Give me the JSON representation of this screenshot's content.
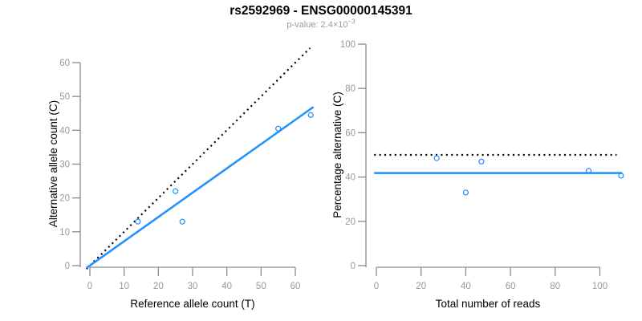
{
  "header": {
    "title": "rs2592969 - ENSG00000145391",
    "subtitle_main": "p-value: 2.4×10",
    "subtitle_exponent": "−3"
  },
  "colors": {
    "accent_blue": "#1E90FF",
    "dotted_line": "#000000",
    "axis": "#8a8a8a",
    "tick_label": "#999999",
    "axis_title": "#000000",
    "subtitle": "#9a9a9a",
    "background": "#ffffff"
  },
  "chart_data": [
    {
      "type": "scatter",
      "title": "",
      "xlabel": "Reference allele count (T)",
      "ylabel": "Alternative allele count (C)",
      "xticks": [
        0,
        10,
        20,
        30,
        40,
        50,
        60
      ],
      "yticks": [
        0,
        10,
        20,
        30,
        40,
        50,
        60
      ],
      "xlim": [
        -2.6,
        67
      ],
      "ylim": [
        -2.6,
        67
      ],
      "grid": false,
      "marker": {
        "shape": "open-circle",
        "color": "#1E90FF"
      },
      "points": [
        [
          14,
          13
        ],
        [
          25,
          22
        ],
        [
          27,
          13
        ],
        [
          55,
          40.5
        ],
        [
          64.5,
          44.5
        ]
      ],
      "lines": [
        {
          "name": "identity-line",
          "style": "dotted",
          "color": "#000000",
          "x0": -1,
          "y0": -1,
          "x1": 64.3,
          "y1": 64.3
        },
        {
          "name": "fit-line",
          "style": "solid",
          "color": "#1E90FF",
          "x0": -1,
          "y0": -0.7,
          "x1": 65.3,
          "y1": 46.9
        }
      ]
    },
    {
      "type": "scatter",
      "title": "",
      "xlabel": "Total number of reads",
      "ylabel": "Percentage alternative (C)",
      "xticks": [
        0,
        20,
        40,
        60,
        80,
        100
      ],
      "yticks": [
        0,
        20,
        40,
        60,
        80,
        100
      ],
      "xlim": [
        -4.4,
        114
      ],
      "ylim": [
        -4,
        104
      ],
      "grid": false,
      "marker": {
        "shape": "open-circle",
        "color": "#1E90FF"
      },
      "points": [
        [
          27,
          48.5
        ],
        [
          40,
          33
        ],
        [
          47,
          47
        ],
        [
          95,
          42.8
        ],
        [
          109.5,
          40.6
        ]
      ],
      "lines": [
        {
          "name": "expected-50-percent-line",
          "style": "dotted",
          "color": "#000000",
          "x0": -1,
          "y0": 50,
          "x1": 107.5,
          "y1": 50
        },
        {
          "name": "mean-percentage-line",
          "style": "solid",
          "color": "#1E90FF",
          "x0": -1,
          "y0": 41.8,
          "x1": 110,
          "y1": 41.8
        }
      ]
    }
  ]
}
